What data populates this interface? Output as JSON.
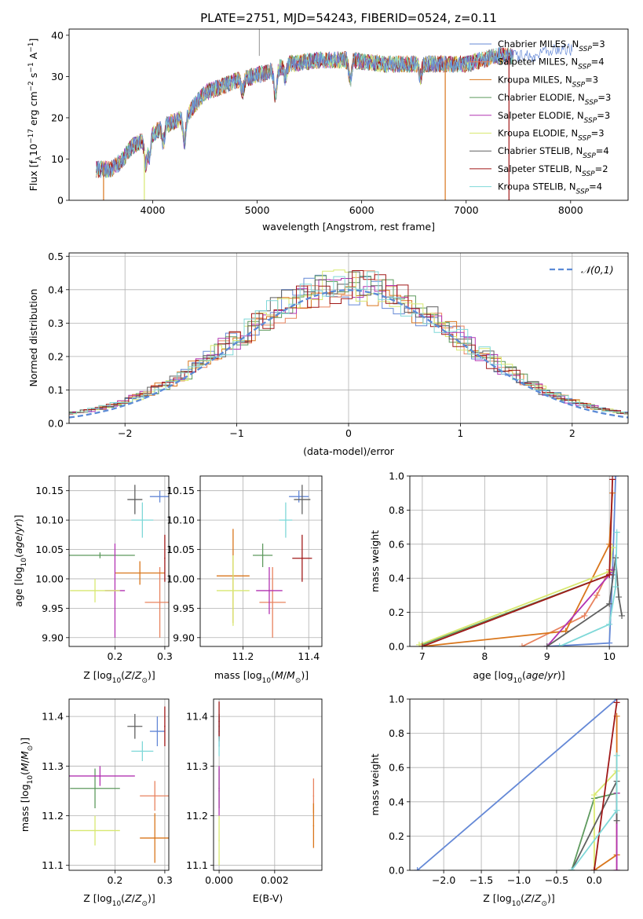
{
  "title": "PLATE=2751, MJD=54243, FIBERID=0524, z=0.11",
  "series_colors": [
    "#6488d6",
    "#e8835f",
    "#d9761c",
    "#5e9a5e",
    "#b233b2",
    "#d8e870",
    "#606060",
    "#a01818",
    "#7fd8d8"
  ],
  "chart_data": [
    {
      "id": "spectrum",
      "type": "line",
      "xlabel": "wavelength [Angstrom, rest frame]",
      "ylabel": "Flux [fλ10⁻¹⁷ erg cm⁻² s⁻¹ A⁻¹]",
      "xlim": [
        3200,
        8550
      ],
      "ylim": [
        0,
        41.5
      ],
      "xticks": [
        4000,
        5000,
        6000,
        7000,
        8000
      ],
      "yticks": [
        0,
        10,
        20,
        30,
        40
      ],
      "grid": false,
      "legend": "top-right",
      "continuum": {
        "x": [
          3450,
          3600,
          3700,
          3800,
          3950,
          4100,
          4300,
          4500,
          4800,
          5100,
          5300,
          5600,
          5900,
          6200,
          6600,
          7000,
          7300,
          7450
        ],
        "y": [
          7.5,
          7.5,
          9.5,
          13,
          15,
          18,
          20,
          26,
          29,
          31,
          33,
          34,
          34,
          33,
          33,
          33,
          35,
          35
        ]
      },
      "series": [
        {
          "name": "Chabrier MILES, N_SSP=3"
        },
        {
          "name": "Salpeter MILES, N_SSP=4"
        },
        {
          "name": "Kroupa MILES, N_SSP=3"
        },
        {
          "name": "Chabrier ELODIE, N_SSP=3"
        },
        {
          "name": "Salpeter ELODIE, N_SSP=3"
        },
        {
          "name": "Kroupa ELODIE, N_SSP=3"
        },
        {
          "name": "Chabrier STELIB, N_SSP=4"
        },
        {
          "name": "Salpeter STELIB, N_SSP=2"
        },
        {
          "name": "Kroupa STELIB, N_SSP=4"
        }
      ]
    },
    {
      "id": "residuals",
      "type": "line",
      "xlabel": "(data-model)/error",
      "ylabel": "Normed distribution",
      "xlim": [
        -2.5,
        2.5
      ],
      "ylim": [
        0,
        0.51
      ],
      "xticks": [
        -2,
        -1,
        0,
        1,
        2
      ],
      "yticks": [
        0.0,
        0.1,
        0.2,
        0.3,
        0.4,
        0.5
      ],
      "grid": true,
      "legend": "top-right",
      "gaussian": {
        "name": "𝒩(0,1)",
        "mean": 0,
        "sigma": 1
      },
      "bin_width": 0.1
    },
    {
      "id": "age_vs_Z",
      "type": "scatter",
      "xlabel": "Z [log10(Z/Z⊙)]",
      "ylabel": "age  [log10(age/yr)]",
      "xlim": [
        0.108,
        0.308
      ],
      "ylim": [
        9.885,
        10.175
      ],
      "xticks": [
        0.2,
        0.3
      ],
      "yticks": [
        9.9,
        9.95,
        10.0,
        10.05,
        10.1,
        10.15
      ],
      "grid": true,
      "points": [
        {
          "x": 0.29,
          "y": 10.14,
          "xerr": 0.02,
          "yerr": 0.01
        },
        {
          "x": 0.29,
          "y": 9.96,
          "xerr": 0.03,
          "yerr": 0.06
        },
        {
          "x": 0.25,
          "y": 10.01,
          "xerr": 0.05,
          "yerr": 0.02
        },
        {
          "x": 0.17,
          "y": 10.04,
          "xerr": 0.07,
          "yerr": 0.005
        },
        {
          "x": 0.2,
          "y": 9.98,
          "xerr": 0.02,
          "yerr": 0.08
        },
        {
          "x": 0.16,
          "y": 9.98,
          "xerr": 0.05,
          "yerr": 0.02
        },
        {
          "x": 0.24,
          "y": 10.135,
          "xerr": 0.015,
          "yerr": 0.025
        },
        {
          "x": 0.3,
          "y": 10.035,
          "xerr": 0.0,
          "yerr": 0.04
        },
        {
          "x": 0.255,
          "y": 10.1,
          "xerr": 0.022,
          "yerr": 0.03
        }
      ]
    },
    {
      "id": "age_vs_mass",
      "type": "scatter",
      "xlabel": "mass [log10(M/M⊙)]",
      "ylabel": "",
      "xlim": [
        11.07,
        11.44
      ],
      "ylim": [
        9.885,
        10.175
      ],
      "xticks": [
        11.2,
        11.4
      ],
      "yticks": [
        9.9,
        9.95,
        10.0,
        10.05,
        10.1,
        10.15
      ],
      "grid": true,
      "points": [
        {
          "x": 11.37,
          "y": 10.14,
          "xerr": 0.03,
          "yerr": 0.01
        },
        {
          "x": 11.29,
          "y": 9.96,
          "xerr": 0.04,
          "yerr": 0.06
        },
        {
          "x": 11.17,
          "y": 10.005,
          "xerr": 0.05,
          "yerr": 0.08
        },
        {
          "x": 11.26,
          "y": 10.04,
          "xerr": 0.03,
          "yerr": 0.02
        },
        {
          "x": 11.28,
          "y": 9.98,
          "xerr": 0.04,
          "yerr": 0.04
        },
        {
          "x": 11.17,
          "y": 9.98,
          "xerr": 0.05,
          "yerr": 0.06
        },
        {
          "x": 11.38,
          "y": 10.135,
          "xerr": 0.025,
          "yerr": 0.025
        },
        {
          "x": 11.38,
          "y": 10.035,
          "xerr": 0.03,
          "yerr": 0.04
        },
        {
          "x": 11.33,
          "y": 10.1,
          "xerr": 0.02,
          "yerr": 0.03
        }
      ]
    },
    {
      "id": "mass_weight_vs_age",
      "type": "line",
      "xlabel": "age  [log10(age/yr)]",
      "ylabel": "mass weight",
      "xlim": [
        6.8,
        10.3
      ],
      "ylim": [
        0,
        1
      ],
      "xticks": [
        7,
        8,
        9,
        10
      ],
      "yticks": [
        0.0,
        0.2,
        0.4,
        0.6,
        0.8,
        1.0
      ],
      "grid": true,
      "series": [
        {
          "x": [
            9.0,
            10.0,
            10.05,
            10.1
          ],
          "y": [
            0.0,
            0.02,
            0.42,
            1.0
          ]
        },
        {
          "x": [
            8.6,
            9.6,
            9.8,
            10.0
          ],
          "y": [
            0.0,
            0.18,
            0.3,
            0.45
          ]
        },
        {
          "x": [
            7.0,
            9.3,
            10.0,
            10.05
          ],
          "y": [
            0.0,
            0.09,
            0.6,
            0.9
          ]
        },
        {
          "x": [
            7.0,
            10.0,
            10.05
          ],
          "y": [
            0.01,
            0.42,
            0.45
          ]
        },
        {
          "x": [
            9.0,
            10.0,
            10.05
          ],
          "y": [
            0.0,
            0.42,
            0.45
          ]
        },
        {
          "x": [
            6.95,
            10.0,
            10.05
          ],
          "y": [
            0.01,
            0.44,
            0.58
          ]
        },
        {
          "x": [
            9.0,
            10.0,
            10.1,
            10.15,
            10.2
          ],
          "y": [
            0.0,
            0.25,
            0.52,
            0.29,
            0.18
          ]
        },
        {
          "x": [
            7.0,
            10.0,
            10.05
          ],
          "y": [
            0.0,
            0.42,
            0.98
          ]
        },
        {
          "x": [
            9.2,
            10.0,
            10.1,
            10.12
          ],
          "y": [
            0.0,
            0.13,
            0.35,
            0.67
          ]
        }
      ]
    },
    {
      "id": "mass_vs_Z",
      "type": "scatter",
      "xlabel": "Z [log10(Z/Z⊙)]",
      "ylabel": "mass [log10(M/M⊙)]",
      "xlim": [
        0.108,
        0.308
      ],
      "ylim": [
        11.09,
        11.435
      ],
      "xticks": [
        0.2,
        0.3
      ],
      "yticks": [
        11.1,
        11.2,
        11.3,
        11.4
      ],
      "grid": true,
      "points": [
        {
          "x": 0.285,
          "y": 11.37,
          "xerr": 0.015,
          "yerr": 0.03
        },
        {
          "x": 0.28,
          "y": 11.24,
          "xerr": 0.03,
          "yerr": 0.03
        },
        {
          "x": 0.28,
          "y": 11.155,
          "xerr": 0.03,
          "yerr": 0.05
        },
        {
          "x": 0.16,
          "y": 11.255,
          "xerr": 0.05,
          "yerr": 0.04
        },
        {
          "x": 0.17,
          "y": 11.28,
          "xerr": 0.07,
          "yerr": 0.02
        },
        {
          "x": 0.16,
          "y": 11.17,
          "xerr": 0.05,
          "yerr": 0.03
        },
        {
          "x": 0.24,
          "y": 11.38,
          "xerr": 0.015,
          "yerr": 0.025
        },
        {
          "x": 0.3,
          "y": 11.38,
          "xerr": 0.0,
          "yerr": 0.04
        },
        {
          "x": 0.255,
          "y": 11.33,
          "xerr": 0.022,
          "yerr": 0.02
        }
      ]
    },
    {
      "id": "mass_vs_EBV",
      "type": "scatter",
      "xlabel": "E(B-V)",
      "ylabel": "",
      "xlim": [
        -0.0002,
        0.0037
      ],
      "ylim": [
        11.09,
        11.435
      ],
      "xticks": [
        0.0,
        0.002
      ],
      "xtick_labels": [
        "0.000",
        "0.002"
      ],
      "yticks": [
        11.1,
        11.2,
        11.3,
        11.4
      ],
      "grid": true,
      "points": [
        {
          "x": 0.0,
          "y": 11.37,
          "xerr": 0,
          "yerr": 0.03
        },
        {
          "x": 0.0034,
          "y": 11.24,
          "xerr": 0,
          "yerr": 0.035
        },
        {
          "x": 0.0034,
          "y": 11.18,
          "xerr": 0,
          "yerr": 0.045
        },
        {
          "x": 0.0,
          "y": 11.255,
          "xerr": 0,
          "yerr": 0.04
        },
        {
          "x": 0.0,
          "y": 11.25,
          "xerr": 0,
          "yerr": 0.05
        },
        {
          "x": 0.0,
          "y": 11.15,
          "xerr": 0,
          "yerr": 0.05
        },
        {
          "x": 0.0,
          "y": 11.38,
          "xerr": 0,
          "yerr": 0.025
        },
        {
          "x": 0.0,
          "y": 11.39,
          "xerr": 0,
          "yerr": 0.04
        },
        {
          "x": 0.0,
          "y": 11.34,
          "xerr": 0,
          "yerr": 0.02
        }
      ]
    },
    {
      "id": "mass_weight_vs_Z",
      "type": "line",
      "xlabel": "Z [log10(Z/Z⊙)]",
      "ylabel": "mass weight",
      "xlim": [
        -2.45,
        0.45
      ],
      "ylim": [
        0,
        1
      ],
      "xticks": [
        -2.0,
        -1.5,
        -1.0,
        -0.5,
        0.0
      ],
      "xtick_labels": [
        "−2.0",
        "−1.5",
        "−1.0",
        "−0.5",
        "0.0"
      ],
      "yticks": [
        0.0,
        0.2,
        0.4,
        0.6,
        0.8,
        1.0
      ],
      "grid": true,
      "series": [
        {
          "x": [
            -2.35,
            0.3
          ],
          "y": [
            0.0,
            1.0
          ]
        },
        {
          "x": [
            0.3,
            0.3
          ],
          "y": [
            0.0,
            0.45
          ]
        },
        {
          "x": [
            0.0,
            0.3,
            0.3
          ],
          "y": [
            0.0,
            0.09,
            0.9
          ]
        },
        {
          "x": [
            -0.3,
            0.0,
            0.3
          ],
          "y": [
            0.0,
            0.42,
            0.45
          ]
        },
        {
          "x": [
            0.3,
            0.3
          ],
          "y": [
            0.0,
            0.45
          ]
        },
        {
          "x": [
            0.0,
            0.0,
            0.3
          ],
          "y": [
            0.0,
            0.44,
            0.58
          ]
        },
        {
          "x": [
            -0.3,
            0.3,
            0.3
          ],
          "y": [
            0.0,
            0.52,
            0.29
          ]
        },
        {
          "x": [
            0.0,
            0.3
          ],
          "y": [
            0.0,
            0.98
          ]
        },
        {
          "x": [
            -0.3,
            0.3,
            0.3
          ],
          "y": [
            0.0,
            0.35,
            0.67
          ]
        }
      ]
    }
  ]
}
